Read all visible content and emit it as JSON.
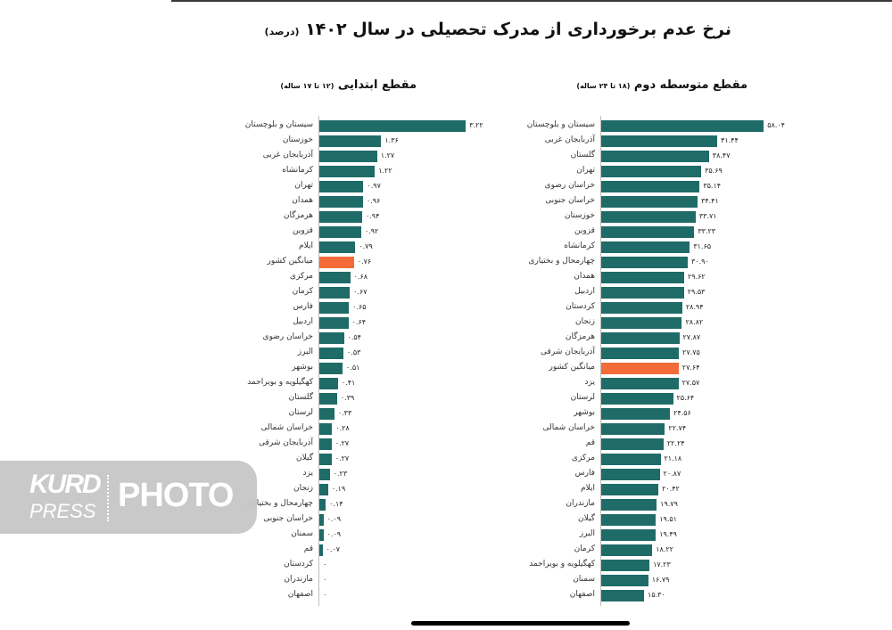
{
  "title": "نرخ عدم برخورداری از مدرک تحصیلی در سال ۱۴۰۲",
  "title_unit": "(درصد)",
  "colors": {
    "bar": "#1f6b67",
    "highlight": "#f26b38",
    "axis": "#bdbdbd"
  },
  "watermark": {
    "brand_top": "KURD",
    "brand_bottom": "PRESS",
    "word": "PHOTO"
  },
  "chart_data": [
    {
      "type": "bar",
      "orientation": "horizontal",
      "title": "مقطع متوسطه دوم",
      "subtitle": "(۱۸ تا ۲۴ ساله)",
      "xlabel": "",
      "ylabel": "",
      "xlim": [
        0,
        60
      ],
      "grid": false,
      "highlight_category": "میانگین کشور",
      "categories": [
        "سیستان و بلوچستان",
        "آذربایجان غربی",
        "گلستان",
        "تهران",
        "خراسان رضوی",
        "خراسان جنوبی",
        "خوزستان",
        "قزوین",
        "کرمانشاه",
        "چهارمحال و بختیاری",
        "همدان",
        "اردبیل",
        "کردستان",
        "زنجان",
        "هرمزگان",
        "آذربایجان شرقی",
        "میانگین کشور",
        "یزد",
        "لرستان",
        "بوشهر",
        "خراسان شمالی",
        "قم",
        "مرکزی",
        "فارس",
        "ایلام",
        "مازندران",
        "گیلان",
        "البرز",
        "کرمان",
        "کهگیلویه و بویراحمد",
        "سمنان",
        "اصفهان"
      ],
      "values": [
        58.04,
        41.44,
        38.47,
        35.69,
        35.14,
        34.41,
        33.71,
        33.23,
        31.65,
        30.9,
        29.62,
        29.53,
        28.94,
        28.82,
        27.87,
        27.75,
        27.64,
        27.57,
        25.64,
        24.56,
        22.74,
        22.24,
        21.18,
        20.87,
        20.42,
        19.79,
        19.51,
        19.49,
        18.22,
        17.23,
        16.79,
        15.3
      ],
      "value_labels": [
        "۵۸.۰۴",
        "۴۱.۴۴",
        "۳۸.۴۷",
        "۳۵.۶۹",
        "۳۵.۱۴",
        "۳۴.۴۱",
        "۳۳.۷۱",
        "۳۳.۲۳",
        "۳۱.۶۵",
        "۳۰.۹۰",
        "۲۹.۶۲",
        "۲۹.۵۳",
        "۲۸.۹۴",
        "۲۸.۸۲",
        "۲۷.۸۷",
        "۲۷.۷۵",
        "۲۷.۶۴",
        "۲۷.۵۷",
        "۲۵.۶۴",
        "۲۴.۵۶",
        "۲۲.۷۴",
        "۲۲.۲۴",
        "۲۱.۱۸",
        "۲۰.۸۷",
        "۲۰.۴۲",
        "۱۹.۷۹",
        "۱۹.۵۱",
        "۱۹.۴۹",
        "۱۸.۲۲",
        "۱۷.۲۳",
        "۱۶.۷۹",
        "۱۵.۳۰"
      ]
    },
    {
      "type": "bar",
      "orientation": "horizontal",
      "title": "مقطع ابتدایی",
      "subtitle": "(۱۲ تا ۱۷ ساله)",
      "xlabel": "",
      "ylabel": "",
      "xlim": [
        0,
        3.5
      ],
      "grid": false,
      "highlight_category": "میانگین کشور",
      "categories": [
        "سیستان و بلوچستان",
        "خوزستان",
        "آذربایجان غربی",
        "کرمانشاه",
        "تهران",
        "همدان",
        "هرمزگان",
        "قزوین",
        "ایلام",
        "میانگین کشور",
        "مرکزی",
        "کرمان",
        "فارس",
        "اردبیل",
        "خراسان رضوی",
        "البرز",
        "بوشهر",
        "کهگیلویه و بویراحمد",
        "گلستان",
        "لرستان",
        "خراسان شمالی",
        "آذربایجان شرقی",
        "گیلان",
        "یزد",
        "زنجان",
        "چهارمحال و بختیاری",
        "خراسان جنوبی",
        "سمنان",
        "قم",
        "کردستان",
        "مازندران",
        "اصفهان"
      ],
      "values": [
        3.22,
        1.36,
        1.27,
        1.22,
        0.97,
        0.96,
        0.94,
        0.92,
        0.79,
        0.76,
        0.68,
        0.67,
        0.65,
        0.64,
        0.54,
        0.53,
        0.51,
        0.41,
        0.39,
        0.33,
        0.28,
        0.27,
        0.27,
        0.23,
        0.19,
        0.14,
        0.09,
        0.09,
        0.07,
        0,
        0,
        0
      ],
      "value_labels": [
        "۳.۲۲",
        "۱.۳۶",
        "۱.۲۷",
        "۱.۲۲",
        "۰.۹۷",
        "۰.۹۶",
        "۰.۹۴",
        "۰.۹۲",
        "۰.۷۹",
        "۰.۷۶",
        "۰.۶۸",
        "۰.۶۷",
        "۰.۶۵",
        "۰.۶۴",
        "۰.۵۴",
        "۰.۵۳",
        "۰.۵۱",
        "۰.۴۱",
        "۰.۳۹",
        "۰.۳۳",
        "۰.۲۸",
        "۰.۲۷",
        "۰.۲۷",
        "۰.۲۳",
        "۰.۱۹",
        "۰.۱۴",
        "۰.۰۹",
        "۰.۰۹",
        "۰.۰۷",
        "۰",
        "۰",
        "۰"
      ]
    }
  ]
}
